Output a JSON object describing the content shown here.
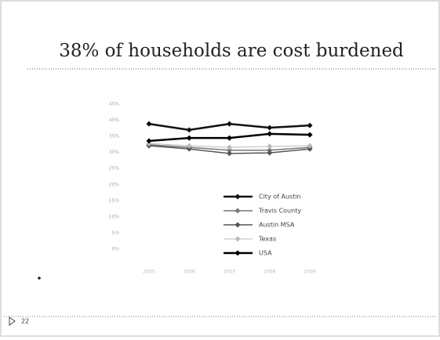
{
  "slide": {
    "title": "38% of households are cost burdened",
    "page_number": "22"
  },
  "chart_data": {
    "type": "line",
    "categories": [
      "2005",
      "2006",
      "2007",
      "2008",
      "2009"
    ],
    "series": [
      {
        "name": "City of Austin",
        "color": "#111111",
        "values": [
          38.9,
          37.0,
          38.9,
          37.7,
          38.4
        ]
      },
      {
        "name": "Travis County",
        "color": "#777777",
        "values": [
          32.4,
          31.6,
          30.7,
          30.7,
          31.6
        ]
      },
      {
        "name": "Austin MSA",
        "color": "#555555",
        "values": [
          32.1,
          31.1,
          29.7,
          29.9,
          31.1
        ]
      },
      {
        "name": "Texas",
        "color": "#bbbbbb",
        "values": [
          32.8,
          32.1,
          31.6,
          31.9,
          32.1
        ]
      },
      {
        "name": "USA",
        "color": "#000000",
        "values": [
          33.6,
          34.5,
          34.5,
          35.8,
          35.5
        ]
      }
    ],
    "ylim": [
      0,
      45
    ],
    "yticks": [
      {
        "value": 0,
        "label": "0%"
      },
      {
        "value": 5,
        "label": "5%"
      },
      {
        "value": 10,
        "label": "10%"
      },
      {
        "value": 15,
        "label": "15%"
      },
      {
        "value": 20,
        "label": "20%"
      },
      {
        "value": 25,
        "label": "25%"
      },
      {
        "value": 30,
        "label": "30%"
      },
      {
        "value": 35,
        "label": "35%"
      },
      {
        "value": 40,
        "label": "40%"
      },
      {
        "value": 45,
        "label": "45%"
      }
    ],
    "legend": "lower right"
  }
}
